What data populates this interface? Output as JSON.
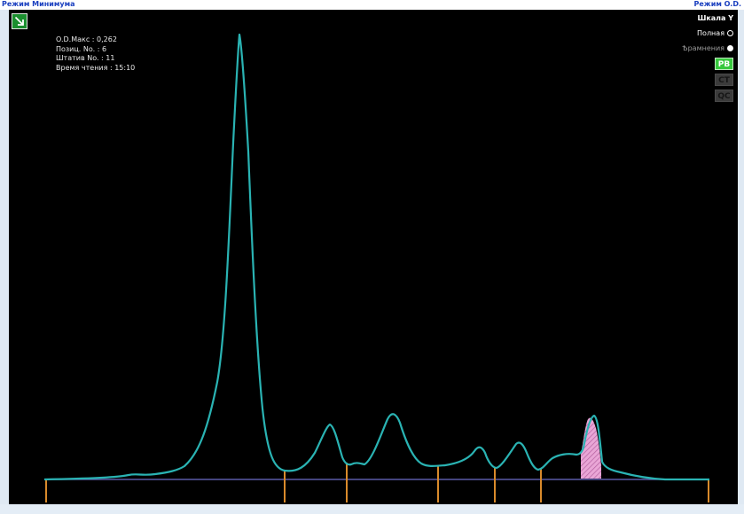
{
  "header": {
    "mode_left": "Режим Минимума",
    "mode_right": "Режим O.D."
  },
  "info": {
    "od_max": "O.D.Макс : 0,262",
    "position_no": "Позиц. No. : 6",
    "rack_no": "Штатив No. : 11",
    "read_time": "Время чтения : 15:10"
  },
  "scale": {
    "title": "Шкала Y",
    "full_label": "Полная",
    "zoom_label": "Ѣрамнения",
    "selected": "full"
  },
  "type_buttons": {
    "pb": "PB",
    "ct": "CT",
    "qc": "QC",
    "active": "PB"
  },
  "colors": {
    "curve": "#2ab3b3",
    "baseline": "#5b5ba8",
    "marker": "#d98a2b",
    "highlight": "#e9a6d6",
    "active_button": "#37c83d",
    "mode_link": "#1a3fbf"
  },
  "icons": {
    "corner": "diagonal-arrow-icon"
  }
}
